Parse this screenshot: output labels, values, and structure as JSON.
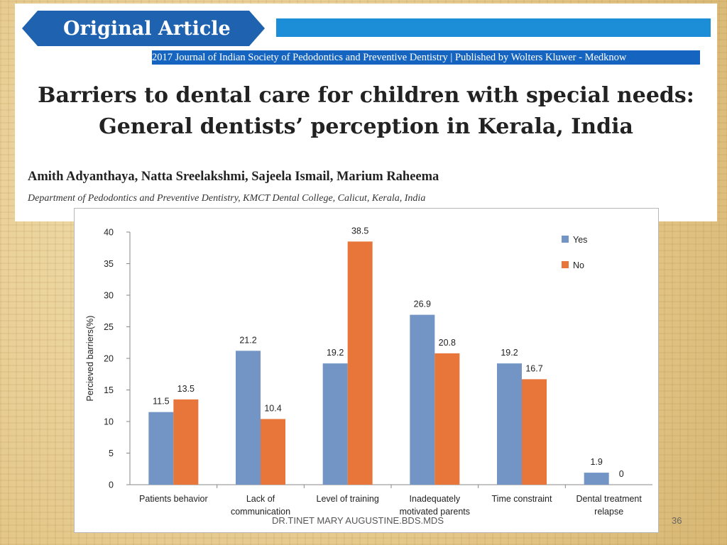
{
  "slide": {
    "banner_label": "Original Article",
    "journal_line": "2017 Journal of Indian Society of Pedodontics and Preventive Dentistry | Published by Wolters Kluwer - Medknow",
    "title_line1": "Barriers to dental care for children with special needs:",
    "title_line2": "General dentists’ perception in Kerala, India",
    "authors": "Amith Adyanthaya, Natta Sreelakshmi, Sajeela Ismail, Marium Raheema",
    "affiliation": "Department of Pedodontics and Preventive Dentistry, KMCT Dental College, Calicut, Kerala, India",
    "footer": "DR.TINET MARY AUGUSTINE.BDS.MDS",
    "page_number": "36"
  },
  "colors": {
    "yes": "#7295c6",
    "no": "#e8763a",
    "banner": "#1e62b0",
    "bar": "#1c8ed8"
  },
  "chart_data": {
    "type": "bar",
    "categories": [
      [
        "Patients behavior"
      ],
      [
        "Lack of",
        "communication"
      ],
      [
        "Level of training"
      ],
      [
        "Inadequately",
        "motivated parents"
      ],
      [
        "Time constraint"
      ],
      [
        "Dental treatment",
        "relapse"
      ]
    ],
    "series": [
      {
        "name": "Yes",
        "values": [
          11.5,
          21.2,
          19.2,
          26.9,
          19.2,
          1.9
        ]
      },
      {
        "name": "No",
        "values": [
          13.5,
          10.4,
          38.5,
          20.8,
          16.7,
          0
        ]
      }
    ],
    "data_labels": [
      [
        "11.5",
        "21.2",
        "19.2",
        "26.9",
        "19.2",
        "1.9"
      ],
      [
        "13.5",
        "10.4",
        "38.5",
        "20.8",
        "16.7",
        "0"
      ]
    ],
    "ylabel": "Percieved barriers(%)",
    "xlabel": "",
    "ylim": [
      0,
      40
    ],
    "yticks": [
      0,
      5,
      10,
      15,
      20,
      25,
      30,
      35,
      40
    ],
    "grid": false,
    "legend_position": "top-right"
  }
}
